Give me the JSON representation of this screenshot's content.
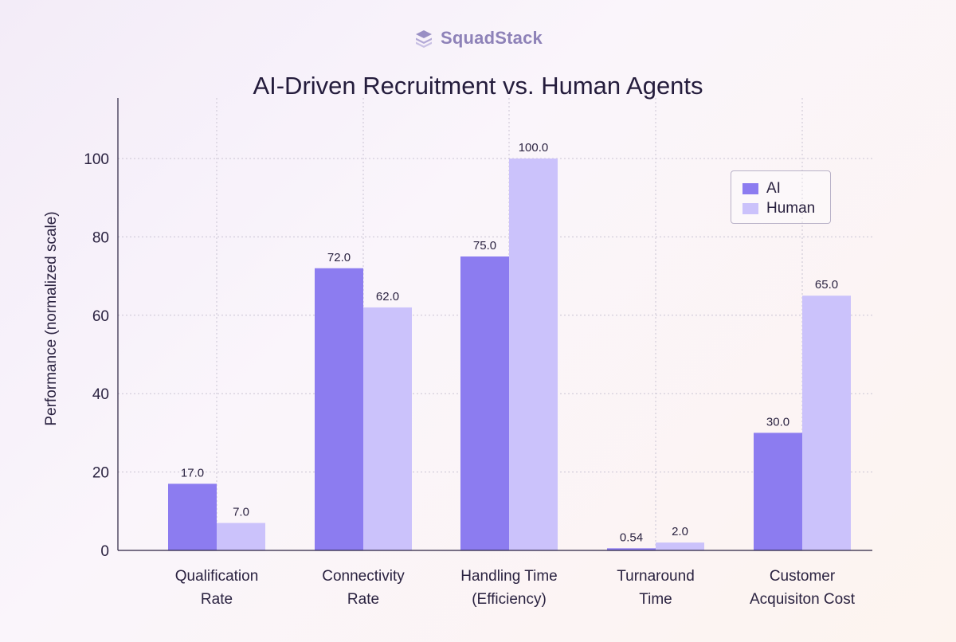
{
  "brand": {
    "name": "SquadStack",
    "logo_icon": "stacked-layers-icon"
  },
  "chart_data": {
    "type": "bar",
    "title": "AI-Driven Recruitment vs. Human Agents",
    "xlabel": "",
    "ylabel": "Performance (normalized scale)",
    "ylim": [
      0,
      112
    ],
    "yticks": [
      0,
      20,
      40,
      60,
      80,
      100
    ],
    "grid": true,
    "legend_position": "top-right",
    "categories": [
      [
        "Qualification",
        "Rate"
      ],
      [
        "Connectivity",
        "Rate"
      ],
      [
        "Handling Time",
        "(Efficiency)"
      ],
      [
        "Turnaround",
        "Time"
      ],
      [
        "Customer",
        "Acquisiton Cost"
      ]
    ],
    "series": [
      {
        "name": "AI",
        "color": "#8c7cf0",
        "values": [
          17.0,
          72.0,
          75.0,
          0.54,
          30.0
        ],
        "labels": [
          "17.0",
          "72.0",
          "75.0",
          "0.54",
          "30.0"
        ]
      },
      {
        "name": "Human",
        "color": "#cbc2fb",
        "values": [
          7.0,
          62.0,
          100.0,
          2.0,
          65.0
        ],
        "labels": [
          "7.0",
          "62.0",
          "100.0",
          "2.0",
          "65.0"
        ]
      }
    ]
  }
}
